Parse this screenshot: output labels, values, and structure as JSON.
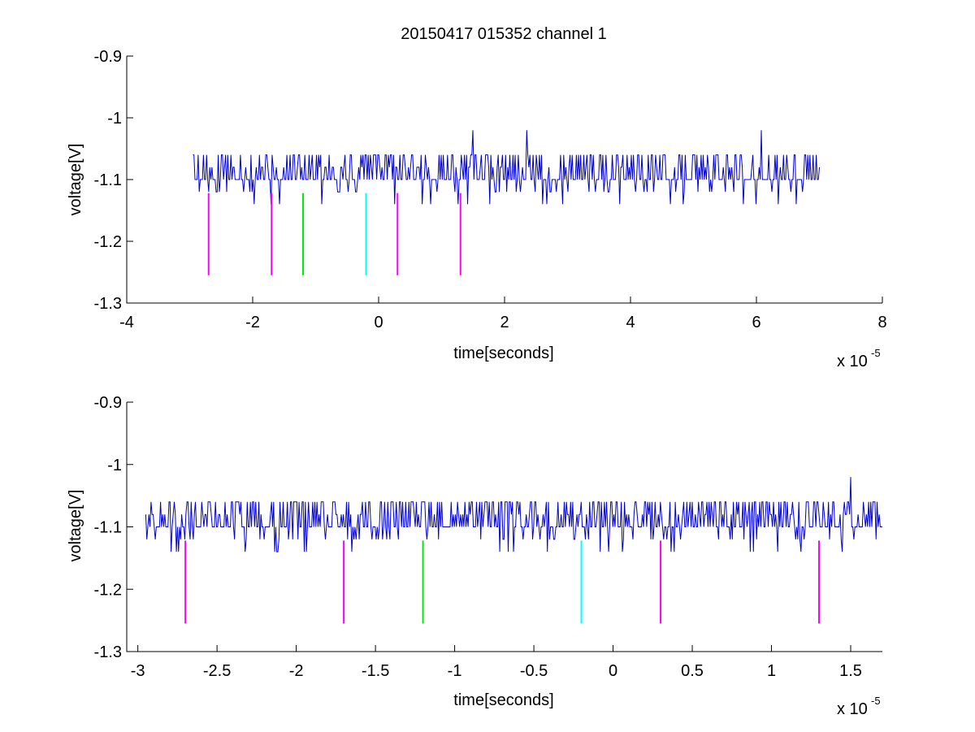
{
  "figure_title": "20150417 015352 channel 1",
  "chart_data": [
    {
      "type": "line",
      "title": "20150417 015352 channel 1",
      "xlabel": "time[seconds]",
      "ylabel": "voltage[V]",
      "x_multiplier": "x 10",
      "x_exponent": "-5",
      "xlim": [
        -4,
        8
      ],
      "ylim": [
        -1.3,
        -0.9
      ],
      "xticks": [
        -4,
        -2,
        0,
        2,
        4,
        6,
        8
      ],
      "xtick_labels": [
        "-4",
        "-2",
        "0",
        "2",
        "4",
        "6",
        "8"
      ],
      "yticks": [
        -1.3,
        -1.2,
        -1.1,
        -1.0,
        -0.9
      ],
      "ytick_labels": [
        "-1.3",
        "-1.2",
        "-1.1",
        "-1",
        "-0.9"
      ],
      "grid": false,
      "signal": {
        "x_range": [
          -2.95,
          7.0
        ],
        "baseline": -1.1,
        "levels": [
          -1.14,
          -1.12,
          -1.1,
          -1.08,
          -1.06
        ],
        "peaks": [
          {
            "x": 1.5,
            "y": -1.02
          },
          {
            "x": 2.35,
            "y": -1.02
          },
          {
            "x": 6.08,
            "y": -1.02
          }
        ],
        "color": "#0000cc"
      },
      "markers": [
        {
          "x": -2.7,
          "y_top": -1.122,
          "y_bottom": -1.255,
          "color": "#ff00ff"
        },
        {
          "x": -1.7,
          "y_top": -1.122,
          "y_bottom": -1.255,
          "color": "#ff00ff"
        },
        {
          "x": -1.2,
          "y_top": -1.122,
          "y_bottom": -1.255,
          "color": "#00ee00"
        },
        {
          "x": -0.2,
          "y_top": -1.122,
          "y_bottom": -1.255,
          "color": "#00ffff"
        },
        {
          "x": 0.3,
          "y_top": -1.122,
          "y_bottom": -1.255,
          "color": "#ff00ff"
        },
        {
          "x": 1.3,
          "y_top": -1.122,
          "y_bottom": -1.255,
          "color": "#ff00ff"
        }
      ]
    },
    {
      "type": "line",
      "title": "",
      "xlabel": "time[seconds]",
      "ylabel": "voltage[V]",
      "x_multiplier": "x 10",
      "x_exponent": "-5",
      "xlim": [
        -3.07,
        1.7
      ],
      "ylim": [
        -1.3,
        -0.9
      ],
      "xticks": [
        -3,
        -2.5,
        -2,
        -1.5,
        -1,
        -0.5,
        0,
        0.5,
        1,
        1.5
      ],
      "xtick_labels": [
        "-3",
        "-2.5",
        "-2",
        "-1.5",
        "-1",
        "-0.5",
        "0",
        "0.5",
        "1",
        "1.5"
      ],
      "yticks": [
        -1.3,
        -1.2,
        -1.1,
        -1.0,
        -0.9
      ],
      "ytick_labels": [
        "-1.3",
        "-1.2",
        "-1.1",
        "-1",
        "-0.9"
      ],
      "grid": false,
      "signal": {
        "x_range": [
          -2.95,
          1.7
        ],
        "baseline": -1.1,
        "levels": [
          -1.14,
          -1.12,
          -1.1,
          -1.08,
          -1.06
        ],
        "peaks": [
          {
            "x": 1.5,
            "y": -1.02
          }
        ],
        "color": "#0000cc"
      },
      "markers": [
        {
          "x": -2.7,
          "y_top": -1.122,
          "y_bottom": -1.255,
          "color": "#ff00ff"
        },
        {
          "x": -1.7,
          "y_top": -1.122,
          "y_bottom": -1.255,
          "color": "#ff00ff"
        },
        {
          "x": -1.2,
          "y_top": -1.122,
          "y_bottom": -1.255,
          "color": "#00ee00"
        },
        {
          "x": -0.2,
          "y_top": -1.122,
          "y_bottom": -1.255,
          "color": "#00ffff"
        },
        {
          "x": 0.3,
          "y_top": -1.122,
          "y_bottom": -1.255,
          "color": "#ff00ff"
        },
        {
          "x": 1.3,
          "y_top": -1.122,
          "y_bottom": -1.255,
          "color": "#ff00ff"
        }
      ]
    }
  ]
}
